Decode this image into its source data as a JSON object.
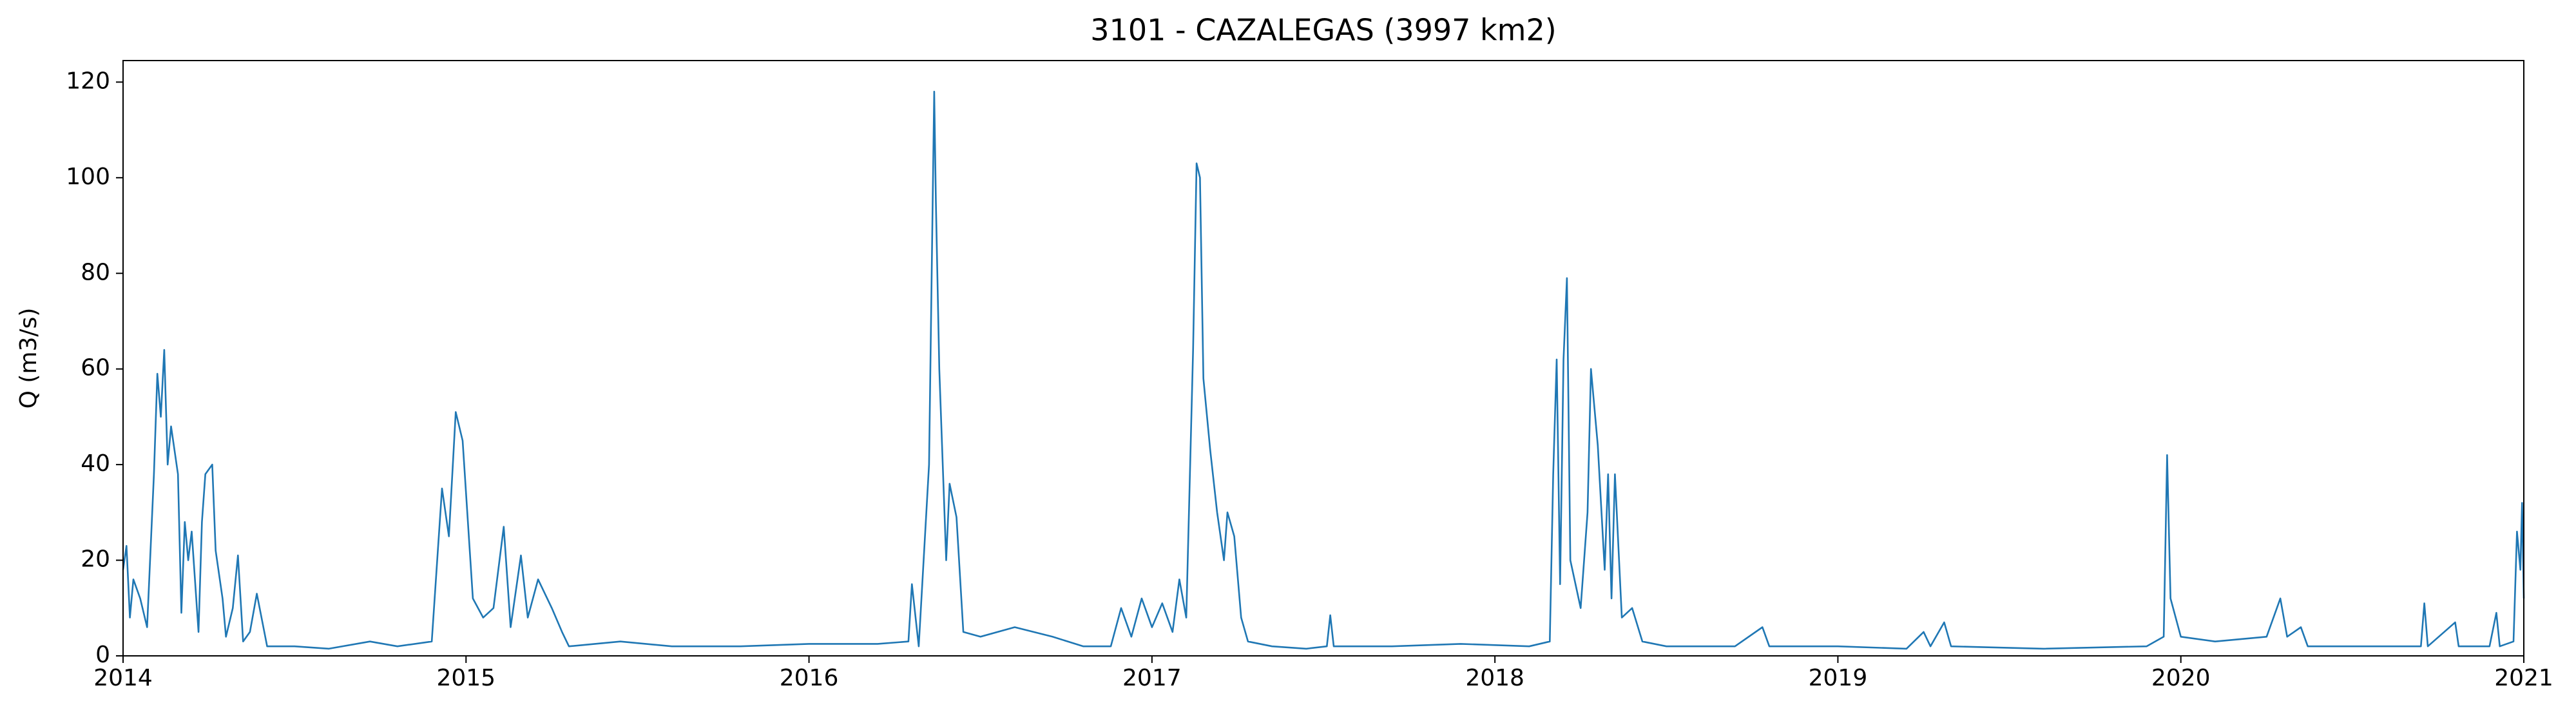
{
  "chart_data": {
    "type": "line",
    "title": "3101 - CAZALEGAS (3997 km2)",
    "y_label": "Q (m3/s)",
    "x": [
      2014,
      2014.01,
      2014.02,
      2014.03,
      2014.05,
      2014.07,
      2014.09,
      2014.1,
      2014.11,
      2014.12,
      2014.13,
      2014.14,
      2014.16,
      2014.17,
      2014.18,
      2014.19,
      2014.2,
      2014.22,
      2014.23,
      2014.24,
      2014.26,
      2014.27,
      2014.29,
      2014.3,
      2014.32,
      2014.335,
      2014.35,
      2014.37,
      2014.39,
      2014.42,
      2014.5,
      2014.6,
      2014.72,
      2014.8,
      2014.9,
      2014.93,
      2014.95,
      2014.97,
      2014.99,
      2015.02,
      2015.05,
      2015.08,
      2015.11,
      2015.13,
      2015.16,
      2015.18,
      2015.21,
      2015.25,
      2015.28,
      2015.3,
      2015.45,
      2015.6,
      2015.8,
      2016,
      2016.2,
      2016.29,
      2016.3,
      2016.32,
      2016.35,
      2016.365,
      2016.37,
      2016.38,
      2016.4,
      2016.41,
      2016.43,
      2016.45,
      2016.5,
      2016.6,
      2016.71,
      2016.8,
      2016.88,
      2016.91,
      2016.94,
      2016.97,
      2017,
      2017.03,
      2017.06,
      2017.08,
      2017.1,
      2017.12,
      2017.13,
      2017.14,
      2017.15,
      2017.17,
      2017.19,
      2017.21,
      2017.22,
      2017.24,
      2017.26,
      2017.28,
      2017.35,
      2017.45,
      2017.51,
      2017.52,
      2017.53,
      2017.7,
      2017.9,
      2018.1,
      2018.16,
      2018.17,
      2018.18,
      2018.19,
      2018.2,
      2018.21,
      2018.22,
      2018.25,
      2018.27,
      2018.28,
      2018.3,
      2018.32,
      2018.33,
      2018.34,
      2018.35,
      2018.37,
      2018.4,
      2018.43,
      2018.5,
      2018.7,
      2018.78,
      2018.8,
      2019,
      2019.2,
      2019.25,
      2019.27,
      2019.31,
      2019.33,
      2019.6,
      2019.9,
      2019.95,
      2019.96,
      2019.97,
      2020,
      2020.1,
      2020.25,
      2020.29,
      2020.31,
      2020.35,
      2020.37,
      2020.5,
      2020.7,
      2020.71,
      2020.72,
      2020.8,
      2020.81,
      2020.9,
      2020.92,
      2020.93,
      2020.97,
      2020.98,
      2020.99,
      2020.995,
      2021
    ],
    "series": [
      {
        "color": "#1f77b4",
        "values": [
          18,
          23,
          8,
          16,
          12,
          6,
          38,
          59,
          50,
          64,
          40,
          48,
          38,
          9,
          28,
          20,
          26,
          5,
          28,
          38,
          40,
          22,
          12,
          4,
          10,
          21,
          3,
          5,
          13,
          2,
          2,
          1.5,
          3,
          2,
          3,
          35,
          25,
          51,
          45,
          12,
          8,
          10,
          27,
          6,
          21,
          8,
          16,
          10,
          5,
          2,
          3,
          2,
          2,
          2.5,
          2.5,
          3,
          15,
          2,
          40,
          118,
          95,
          60,
          20,
          36,
          29,
          5,
          4,
          6,
          4,
          2,
          2,
          10,
          4,
          12,
          6,
          11,
          5,
          16,
          8,
          64,
          103,
          100,
          58,
          43,
          30,
          20,
          30,
          25,
          8,
          3,
          2,
          1.5,
          2,
          8.5,
          2,
          2,
          2.5,
          2,
          3,
          38,
          62,
          15,
          62,
          79,
          20,
          10,
          30,
          60,
          44,
          18,
          38,
          12,
          38,
          8,
          10,
          3,
          2,
          2,
          6,
          2,
          2,
          1.5,
          5,
          2,
          7,
          2,
          1.5,
          2,
          4,
          42,
          12,
          4,
          3,
          4,
          12,
          4,
          6,
          2,
          2,
          2,
          11,
          2,
          7,
          2,
          2,
          9,
          2,
          3,
          26,
          18,
          32,
          12
        ]
      }
    ],
    "xlim": [
      2014,
      2021
    ],
    "xticks": [
      2014,
      2015,
      2016,
      2017,
      2018,
      2019,
      2020,
      2021
    ],
    "ylim": [
      0,
      124.5
    ],
    "yticks": [
      0,
      20,
      40,
      60,
      80,
      100,
      120
    ]
  }
}
